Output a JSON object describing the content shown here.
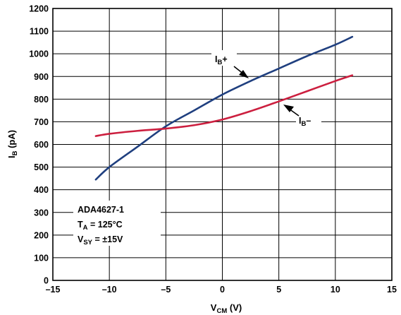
{
  "chart_data": {
    "type": "line",
    "xlim": [
      -15,
      15
    ],
    "ylim": [
      0,
      1200
    ],
    "x_ticks": [
      "–15",
      "–10",
      "–5",
      "0",
      "5",
      "10",
      "15"
    ],
    "y_ticks": [
      "0",
      "100",
      "200",
      "300",
      "400",
      "500",
      "600",
      "700",
      "800",
      "900",
      "1000",
      "1100",
      "1200"
    ],
    "grid": true,
    "xlabel": {
      "main": "V",
      "sub": "CM",
      "unit": " (V)"
    },
    "ylabel": {
      "main": "I",
      "sub": "B",
      "unit": " (pA)"
    },
    "series": [
      {
        "label": {
          "main": "I",
          "sub": "B",
          "suffix": "+"
        },
        "color": "#1f3f7f",
        "x": [
          -11.2,
          -10,
          -7.5,
          -5,
          -2.5,
          0,
          2.5,
          5,
          7.5,
          10,
          11.5
        ],
        "y": [
          445,
          500,
          590,
          680,
          750,
          820,
          880,
          935,
          990,
          1040,
          1075
        ]
      },
      {
        "label": {
          "main": "I",
          "sub": "B",
          "suffix": "–"
        },
        "color": "#cc1f3f",
        "x": [
          -11.2,
          -10,
          -7.5,
          -5,
          -2.5,
          0,
          2.5,
          5,
          7.5,
          10,
          11.5
        ],
        "y": [
          637,
          647,
          660,
          670,
          685,
          710,
          747,
          790,
          835,
          880,
          905
        ]
      }
    ],
    "annotation": {
      "part": "ADA4627-1",
      "temp": {
        "main": "T",
        "sub": "A",
        "rest": " = 125°C"
      },
      "supply": {
        "main": "V",
        "sub": "SY",
        "rest": " = ±15V"
      }
    }
  }
}
